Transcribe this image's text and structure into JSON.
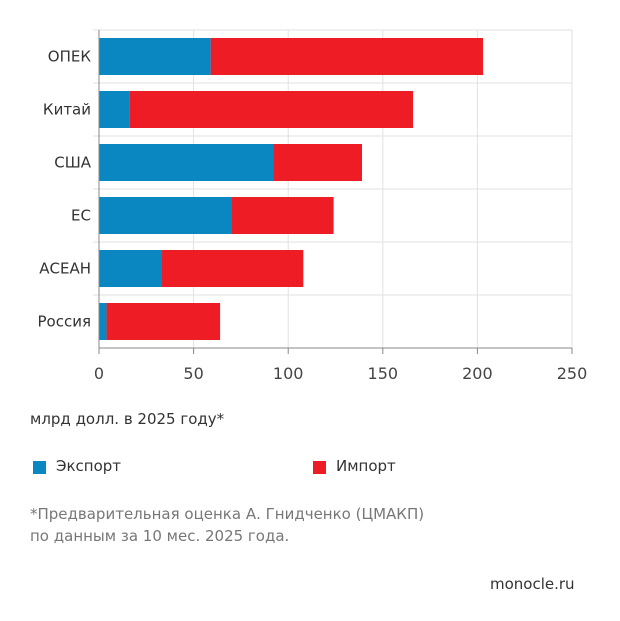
{
  "chart_data": {
    "type": "bar",
    "stacked": true,
    "orientation": "horizontal",
    "categories": [
      "ОПЕК",
      "Китай",
      "США",
      "ЕС",
      "АСЕАН",
      "Россия"
    ],
    "series": [
      {
        "name": "Экспорт",
        "color": "#0a86c0",
        "values": [
          59,
          16,
          92,
          70,
          33,
          4
        ]
      },
      {
        "name": "Импорт",
        "color": "#ee1c25",
        "values": [
          144,
          150,
          47,
          54,
          75,
          60
        ]
      }
    ],
    "xlim": [
      0,
      250
    ],
    "xticks": [
      "0",
      "50",
      "100",
      "150",
      "200",
      "250"
    ],
    "xticks_values": [
      0,
      50,
      100,
      150,
      200,
      250
    ],
    "xlabel": "млрд долл. в 2025 году*",
    "grid": true,
    "legend_placement": "bottom"
  },
  "footnote_line1": "*Предварительная оценка А. Гнидченко (ЦМАКП)",
  "footnote_line2": "по данным за 10 мес. 2025 года.",
  "source": "monocle.ru"
}
